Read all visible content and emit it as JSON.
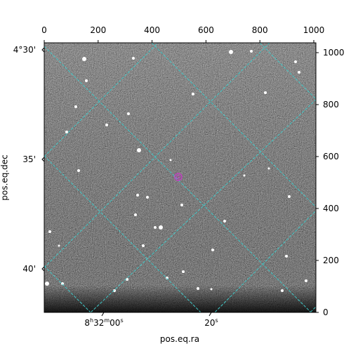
{
  "figure": {
    "top_axis": {
      "ticks": [
        "0",
        "200",
        "400",
        "600",
        "800",
        "1000"
      ]
    },
    "right_axis": {
      "ticks": [
        "0",
        "200",
        "400",
        "600",
        "800",
        "1000"
      ]
    },
    "left_axis": {
      "ticks": [
        "4°30'",
        "35'",
        "40'"
      ],
      "label": "pos.eq.dec"
    },
    "bottom_axis": {
      "label": "pos.eq.ra"
    },
    "ra_ticks": {
      "first": {
        "h": "8",
        "h_unit": "h",
        "m": "32",
        "m_unit": "m",
        "s": "00",
        "s_unit": "s"
      },
      "second": {
        "s": "20",
        "s_unit": "s"
      }
    },
    "grid_color": "#40c8c8",
    "marker_color": "#c040c0",
    "image": {
      "background": "#5a5a5a",
      "noise": "grayscale"
    }
  }
}
